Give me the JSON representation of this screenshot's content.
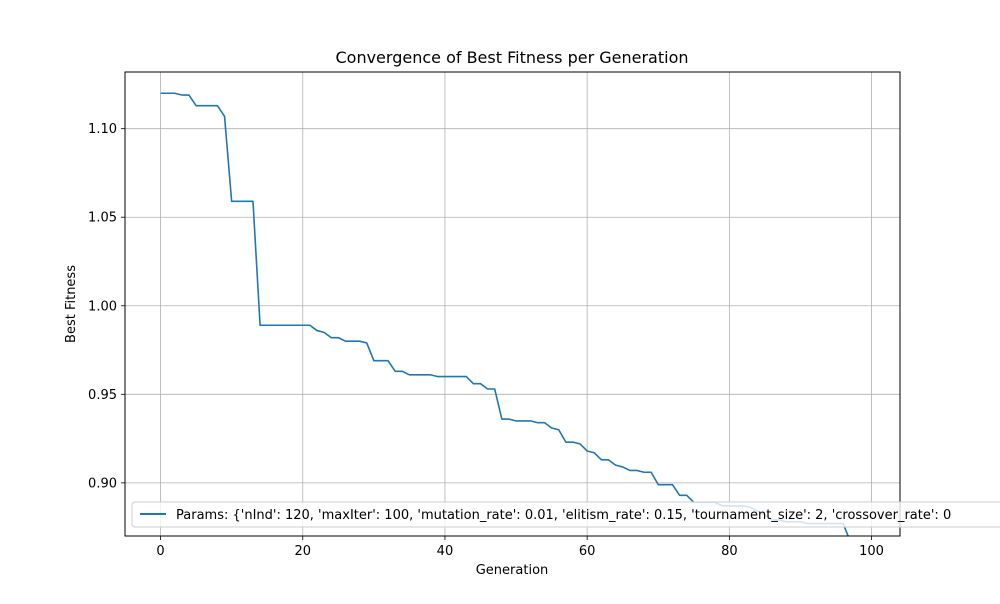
{
  "chart_data": {
    "type": "line",
    "title": "Convergence of Best Fitness per Generation",
    "xlabel": "Generation",
    "ylabel": "Best Fitness",
    "xlim": [
      -5,
      104
    ],
    "ylim": [
      0.87,
      1.132
    ],
    "xticks": [
      0,
      20,
      40,
      60,
      80,
      100
    ],
    "yticks": [
      0.9,
      0.95,
      1.0,
      1.05,
      1.1
    ],
    "xtick_labels": [
      "0",
      "20",
      "40",
      "60",
      "80",
      "100"
    ],
    "ytick_labels": [
      "0.90",
      "0.95",
      "1.00",
      "1.05",
      "1.10"
    ],
    "grid": true,
    "legend_position": "lower-left",
    "series": [
      {
        "name": "Params: {'nInd': 120, 'maxIter': 100, 'mutation_rate': 0.01, 'elitism_rate': 0.15, 'tournament_size': 2, 'crossover_rate': 0",
        "color": "#1f77b4",
        "x": [
          0,
          1,
          2,
          3,
          4,
          5,
          6,
          7,
          8,
          9,
          10,
          11,
          12,
          13,
          14,
          15,
          16,
          17,
          18,
          19,
          20,
          21,
          22,
          23,
          24,
          25,
          26,
          27,
          28,
          29,
          30,
          31,
          32,
          33,
          34,
          35,
          36,
          37,
          38,
          39,
          40,
          41,
          42,
          43,
          44,
          45,
          46,
          47,
          48,
          49,
          50,
          51,
          52,
          53,
          54,
          55,
          56,
          57,
          58,
          59,
          60,
          61,
          62,
          63,
          64,
          65,
          66,
          67,
          68,
          69,
          70,
          71,
          72,
          73,
          74,
          75,
          76,
          77,
          78,
          79,
          80,
          81,
          82,
          83,
          84,
          85,
          86,
          87,
          88,
          89,
          90,
          91,
          92,
          93,
          94,
          95,
          96,
          97,
          98,
          99,
          100
        ],
        "y": [
          1.12,
          1.12,
          1.12,
          1.119,
          1.119,
          1.113,
          1.113,
          1.113,
          1.113,
          1.107,
          1.059,
          1.059,
          1.059,
          1.059,
          0.989,
          0.989,
          0.989,
          0.989,
          0.989,
          0.989,
          0.989,
          0.989,
          0.986,
          0.985,
          0.982,
          0.982,
          0.98,
          0.98,
          0.98,
          0.979,
          0.969,
          0.969,
          0.969,
          0.963,
          0.963,
          0.961,
          0.961,
          0.961,
          0.961,
          0.96,
          0.96,
          0.96,
          0.96,
          0.96,
          0.956,
          0.956,
          0.953,
          0.953,
          0.936,
          0.936,
          0.935,
          0.935,
          0.935,
          0.934,
          0.934,
          0.931,
          0.93,
          0.923,
          0.923,
          0.922,
          0.918,
          0.917,
          0.913,
          0.913,
          0.91,
          0.909,
          0.907,
          0.907,
          0.906,
          0.906,
          0.899,
          0.899,
          0.899,
          0.893,
          0.893,
          0.889,
          0.889,
          0.889,
          0.889,
          0.887,
          0.887,
          0.887,
          0.887,
          0.886,
          0.884,
          0.882,
          0.879,
          0.879,
          0.878,
          0.878,
          0.878,
          0.877,
          0.877,
          0.877,
          0.877,
          0.877,
          0.877,
          0.867,
          0.866,
          0.866,
          0.866
        ]
      }
    ]
  }
}
